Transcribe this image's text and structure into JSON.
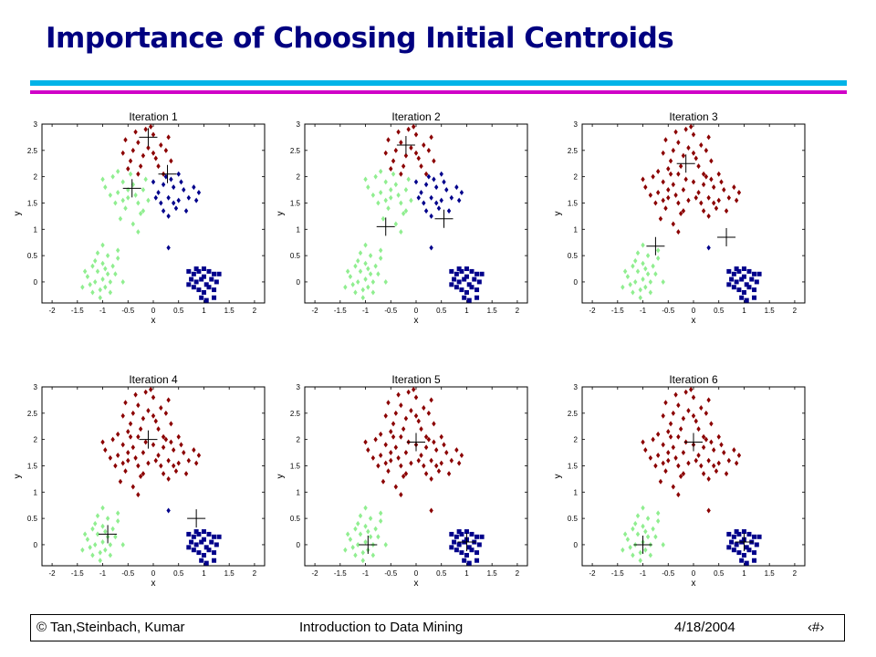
{
  "slide": {
    "title": "Importance of Choosing Initial Centroids",
    "footer": {
      "author": "© Tan,Steinbach, Kumar",
      "course": "Introduction to Data Mining",
      "date": "4/18/2004",
      "page_glyph": "‹#›"
    }
  },
  "colors": {
    "title": "#000080",
    "cluster_red": "#8b0000",
    "cluster_green": "#90ee90",
    "cluster_blue": "#00008b",
    "bar_cyan": "#00b4e8",
    "bar_magenta": "#d000c8"
  },
  "chart_data": [
    {
      "type": "scatter",
      "title": "Iteration 1",
      "xlabel": "x",
      "ylabel": "y",
      "xlim": [
        -2.2,
        2.2
      ],
      "ylim": [
        -0.4,
        3.0
      ],
      "xticks": [
        "-2",
        "-1.5",
        "-1",
        "-0.5",
        "0",
        "0.5",
        "1",
        "1.5",
        "2"
      ],
      "yticks": [
        "0",
        "0.5",
        "1",
        "1.5",
        "2",
        "2.5",
        "3"
      ],
      "centroids": [
        [
          -0.1,
          2.75
        ],
        [
          0.28,
          2.05
        ],
        [
          -0.42,
          1.78
        ]
      ],
      "assignment": {
        "A": "red",
        "B": "green",
        "C": "blue",
        "N": "blue"
      }
    },
    {
      "type": "scatter",
      "title": "Iteration 2",
      "xlabel": "x",
      "ylabel": "y",
      "xlim": [
        -2.2,
        2.2
      ],
      "ylim": [
        -0.4,
        3.0
      ],
      "xticks": [
        "-2",
        "-1.5",
        "-1",
        "-0.5",
        "0",
        "0.5",
        "1",
        "1.5",
        "2"
      ],
      "yticks": [
        "0",
        "0.5",
        "1",
        "1.5",
        "2",
        "2.5",
        "3"
      ],
      "centroids": [
        [
          -0.2,
          2.6
        ],
        [
          0.55,
          1.2
        ],
        [
          -0.6,
          1.05
        ]
      ],
      "assignment": {
        "A": "red",
        "B": "green",
        "C": "blue",
        "N": "blue"
      }
    },
    {
      "type": "scatter",
      "title": "Iteration 3",
      "xlabel": "x",
      "ylabel": "y",
      "xlim": [
        -2.2,
        2.2
      ],
      "ylim": [
        -0.4,
        3.0
      ],
      "xticks": [
        "-2",
        "-1.5",
        "-1",
        "-0.5",
        "0",
        "0.5",
        "1",
        "1.5",
        "2"
      ],
      "yticks": [
        "0",
        "0.5",
        "1",
        "1.5",
        "2",
        "2.5",
        "3"
      ],
      "centroids": [
        [
          -0.15,
          2.25
        ],
        [
          0.65,
          0.85
        ],
        [
          -0.75,
          0.68
        ]
      ],
      "assignment": {
        "A": "red",
        "B": "red",
        "C": "red",
        "N": "blue"
      }
    },
    {
      "type": "scatter",
      "title": "Iteration 4",
      "xlabel": "x",
      "ylabel": "y",
      "xlim": [
        -2.2,
        2.2
      ],
      "ylim": [
        -0.4,
        3.0
      ],
      "xticks": [
        "-2",
        "-1.5",
        "-1",
        "-0.5",
        "0",
        "0.5",
        "1",
        "1.5",
        "2"
      ],
      "yticks": [
        "0",
        "0.5",
        "1",
        "1.5",
        "2",
        "2.5",
        "3"
      ],
      "centroids": [
        [
          -0.1,
          2.0
        ],
        [
          0.85,
          0.5
        ],
        [
          -0.9,
          0.2
        ]
      ],
      "assignment": {
        "A": "red",
        "B": "red",
        "C": "red",
        "N": "blue"
      }
    },
    {
      "type": "scatter",
      "title": "Iteration 5",
      "xlabel": "x",
      "ylabel": "y",
      "xlim": [
        -2.2,
        2.2
      ],
      "ylim": [
        -0.4,
        3.0
      ],
      "xticks": [
        "-2",
        "-1.5",
        "-1",
        "-0.5",
        "0",
        "0.5",
        "1",
        "1.5",
        "2"
      ],
      "yticks": [
        "0",
        "0.5",
        "1",
        "1.5",
        "2",
        "2.5",
        "3"
      ],
      "centroids": [
        [
          0.0,
          1.95
        ],
        [
          1.0,
          0.05
        ],
        [
          -0.95,
          0.0
        ]
      ],
      "assignment": {
        "A": "red",
        "B": "red",
        "C": "red",
        "N": "red"
      }
    },
    {
      "type": "scatter",
      "title": "Iteration 6",
      "xlabel": "x",
      "ylabel": "y",
      "xlim": [
        -2.2,
        2.2
      ],
      "ylim": [
        -0.4,
        3.0
      ],
      "xticks": [
        "-2",
        "-1.5",
        "-1",
        "-0.5",
        "0",
        "0.5",
        "1",
        "1.5",
        "2"
      ],
      "yticks": [
        "0",
        "0.5",
        "1",
        "1.5",
        "2",
        "2.5",
        "3"
      ],
      "centroids": [
        [
          0.0,
          1.95
        ],
        [
          1.0,
          0.05
        ],
        [
          -1.0,
          0.0
        ]
      ],
      "assignment": {
        "A": "red",
        "B": "red",
        "C": "red",
        "N": "red"
      }
    }
  ],
  "points": {
    "A": [
      [
        -0.55,
        2.7
      ],
      [
        -0.4,
        2.5
      ],
      [
        -0.3,
        2.65
      ],
      [
        -0.2,
        2.4
      ],
      [
        -0.1,
        2.55
      ],
      [
        0.05,
        2.35
      ],
      [
        0.15,
        2.6
      ],
      [
        -0.25,
        2.2
      ],
      [
        0.0,
        2.8
      ],
      [
        -0.6,
        2.45
      ],
      [
        0.25,
        2.5
      ],
      [
        -0.15,
        2.9
      ],
      [
        0.35,
        2.3
      ],
      [
        -0.45,
        2.3
      ],
      [
        0.1,
        2.2
      ],
      [
        -0.3,
        2.05
      ],
      [
        0.0,
        2.45
      ],
      [
        -0.5,
        2.15
      ],
      [
        0.2,
        2.05
      ],
      [
        -0.05,
        2.95
      ],
      [
        0.3,
        2.75
      ],
      [
        -0.35,
        2.85
      ]
    ],
    "B": [
      [
        -0.95,
        1.8
      ],
      [
        -0.8,
        2.0
      ],
      [
        -0.7,
        1.7
      ],
      [
        -0.6,
        1.9
      ],
      [
        -0.5,
        1.6
      ],
      [
        -0.4,
        1.85
      ],
      [
        -0.3,
        1.5
      ],
      [
        -0.2,
        1.75
      ],
      [
        -0.1,
        1.55
      ],
      [
        -0.55,
        1.4
      ],
      [
        -0.75,
        1.5
      ],
      [
        -0.45,
        2.05
      ],
      [
        -0.25,
        1.3
      ],
      [
        -0.65,
        1.2
      ],
      [
        -0.35,
        1.65
      ],
      [
        -0.15,
        1.95
      ],
      [
        -0.85,
        1.65
      ],
      [
        -0.4,
        1.1
      ],
      [
        -0.2,
        1.35
      ],
      [
        -0.5,
        1.75
      ],
      [
        -0.7,
        2.1
      ],
      [
        -0.3,
        0.95
      ],
      [
        -1.0,
        1.95
      ],
      [
        -0.6,
        1.55
      ]
    ],
    "C": [
      [
        0.0,
        1.9
      ],
      [
        0.1,
        1.7
      ],
      [
        0.2,
        1.85
      ],
      [
        0.3,
        1.6
      ],
      [
        0.4,
        1.8
      ],
      [
        0.5,
        1.55
      ],
      [
        0.6,
        1.75
      ],
      [
        0.15,
        1.5
      ],
      [
        0.35,
        1.95
      ],
      [
        0.7,
        1.6
      ],
      [
        0.8,
        1.8
      ],
      [
        0.25,
        2.0
      ],
      [
        0.45,
        1.4
      ],
      [
        0.55,
        1.9
      ],
      [
        0.05,
        1.6
      ],
      [
        0.65,
        1.35
      ],
      [
        0.9,
        1.7
      ],
      [
        0.5,
        2.05
      ],
      [
        0.2,
        1.35
      ],
      [
        0.85,
        1.55
      ],
      [
        0.4,
        1.5
      ],
      [
        0.3,
        1.25
      ]
    ],
    "N": [
      [
        0.3,
        0.65
      ]
    ],
    "G": [
      [
        -1.2,
        0.3
      ],
      [
        -1.1,
        0.2
      ],
      [
        -1.0,
        0.35
      ],
      [
        -0.9,
        0.15
      ],
      [
        -0.8,
        0.3
      ],
      [
        -1.3,
        0.1
      ],
      [
        -1.15,
        0.0
      ],
      [
        -1.0,
        0.05
      ],
      [
        -0.85,
        0.0
      ],
      [
        -0.95,
        -0.1
      ],
      [
        -1.05,
        -0.15
      ],
      [
        -1.25,
        -0.05
      ],
      [
        -1.35,
        0.2
      ],
      [
        -0.75,
        0.15
      ],
      [
        -0.7,
        0.45
      ],
      [
        -0.9,
        0.5
      ],
      [
        -1.1,
        0.55
      ],
      [
        -1.0,
        0.7
      ],
      [
        -0.7,
        0.6
      ],
      [
        -0.6,
        0.0
      ],
      [
        -1.4,
        -0.1
      ],
      [
        -1.2,
        -0.2
      ],
      [
        -0.85,
        -0.2
      ],
      [
        -1.05,
        -0.3
      ],
      [
        -0.95,
        0.25
      ],
      [
        -1.15,
        0.4
      ]
    ],
    "D": [
      [
        0.7,
        0.2
      ],
      [
        0.8,
        0.15
      ],
      [
        0.9,
        0.2
      ],
      [
        1.0,
        0.1
      ],
      [
        1.1,
        0.2
      ],
      [
        1.2,
        0.15
      ],
      [
        0.75,
        0.05
      ],
      [
        0.85,
        0.0
      ],
      [
        0.95,
        0.05
      ],
      [
        1.05,
        -0.05
      ],
      [
        1.15,
        0.05
      ],
      [
        1.25,
        0.0
      ],
      [
        0.8,
        -0.1
      ],
      [
        0.9,
        -0.15
      ],
      [
        1.0,
        -0.2
      ],
      [
        1.1,
        -0.1
      ],
      [
        1.2,
        -0.15
      ],
      [
        0.95,
        -0.3
      ],
      [
        1.05,
        -0.35
      ],
      [
        1.2,
        -0.3
      ],
      [
        0.7,
        -0.05
      ],
      [
        1.3,
        0.15
      ],
      [
        0.85,
        0.25
      ],
      [
        1.0,
        0.25
      ]
    ]
  }
}
